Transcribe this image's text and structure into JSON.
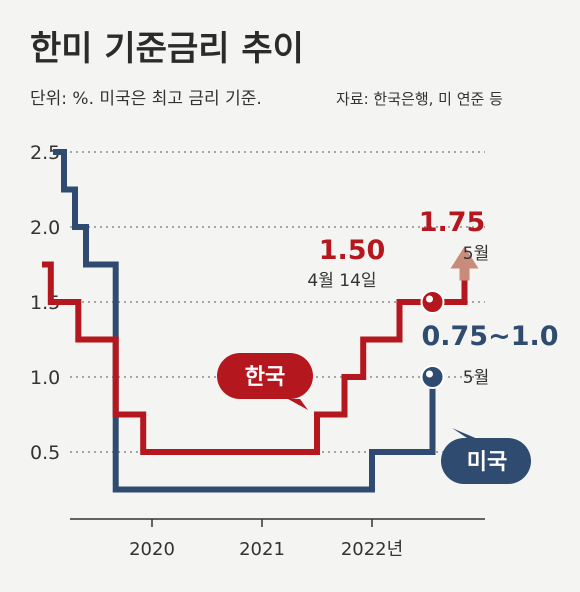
{
  "chart_data": {
    "type": "line",
    "title": "한미 기준금리 추이",
    "subtitle": "단위: %. 미국은 최고 금리 기준.",
    "source": "자료: 한국은행, 미 연준 등",
    "yticks": [
      "2.5",
      "2.0",
      "1.5",
      "1.0",
      "0.5"
    ],
    "ylim": [
      0,
      2.5
    ],
    "xticks": [
      "2020",
      "2021",
      "2022년"
    ],
    "grid": "dotted horizontal",
    "colors": {
      "korea": "#b5171e",
      "us": "#2f4c70",
      "arrow": "#c98c7a",
      "grid": "#777777",
      "axis": "#333333"
    },
    "series": [
      {
        "name": "한국",
        "points": [
          [
            2019.0,
            1.75
          ],
          [
            2019.08,
            1.75
          ],
          [
            2019.08,
            1.5
          ],
          [
            2019.33,
            1.5
          ],
          [
            2019.33,
            1.25
          ],
          [
            2019.67,
            1.25
          ],
          [
            2019.67,
            0.75
          ],
          [
            2019.92,
            0.75
          ],
          [
            2019.92,
            0.5
          ],
          [
            2021.5,
            0.5
          ],
          [
            2021.5,
            0.75
          ],
          [
            2021.75,
            0.75
          ],
          [
            2021.75,
            1.0
          ],
          [
            2021.92,
            1.0
          ],
          [
            2021.92,
            1.25
          ],
          [
            2022.25,
            1.25
          ],
          [
            2022.25,
            1.5
          ],
          [
            2022.55,
            1.5
          ]
        ]
      },
      {
        "name": "미국",
        "points": [
          [
            2019.1,
            2.5
          ],
          [
            2019.2,
            2.5
          ],
          [
            2019.2,
            2.25
          ],
          [
            2019.3,
            2.25
          ],
          [
            2019.3,
            2.0
          ],
          [
            2019.4,
            2.0
          ],
          [
            2019.4,
            1.75
          ],
          [
            2019.67,
            1.75
          ],
          [
            2019.67,
            0.25
          ],
          [
            2022.0,
            0.25
          ],
          [
            2022.0,
            0.5
          ],
          [
            2022.55,
            0.5
          ],
          [
            2022.55,
            1.0
          ]
        ]
      }
    ],
    "annotations": {
      "korea_april": {
        "value": "1.50",
        "date": "4월 14일"
      },
      "korea_may": {
        "value": "1.75",
        "date": "5월"
      },
      "us_may": {
        "value": "0.75~1.0",
        "date": "5월"
      }
    }
  }
}
